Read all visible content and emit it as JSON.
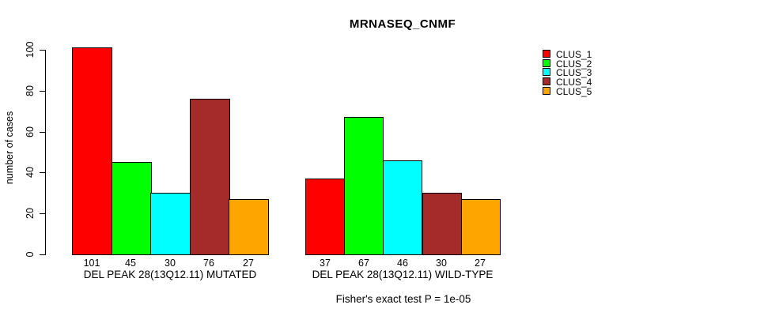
{
  "figure": {
    "title": "MRNASEQ_CNMF",
    "caption": "Fisher's exact test P = 1e-05"
  },
  "chart_data": {
    "type": "bar",
    "title": "MRNASEQ_CNMF",
    "xlabel": "",
    "ylabel": "number of cases",
    "ylim": [
      0,
      100
    ],
    "yticks": [
      0,
      20,
      40,
      60,
      80,
      100
    ],
    "grid": false,
    "legend_position": "right",
    "bar_value_labels": true,
    "categories": [
      "DEL PEAK 28(13Q12.11) MUTATED",
      "DEL PEAK 28(13Q12.11) WILD-TYPE"
    ],
    "series": [
      {
        "name": "CLUS_1",
        "color": "#ff0000",
        "values": [
          101,
          37
        ]
      },
      {
        "name": "CLUS_2",
        "color": "#00ff00",
        "values": [
          45,
          67
        ]
      },
      {
        "name": "CLUS_3",
        "color": "#00ffff",
        "values": [
          30,
          46
        ]
      },
      {
        "name": "CLUS_4",
        "color": "#a52a2a",
        "values": [
          76,
          30
        ]
      },
      {
        "name": "CLUS_5",
        "color": "#ffa500",
        "values": [
          27,
          27
        ]
      }
    ],
    "caption": "Fisher's exact test P = 1e-05"
  }
}
